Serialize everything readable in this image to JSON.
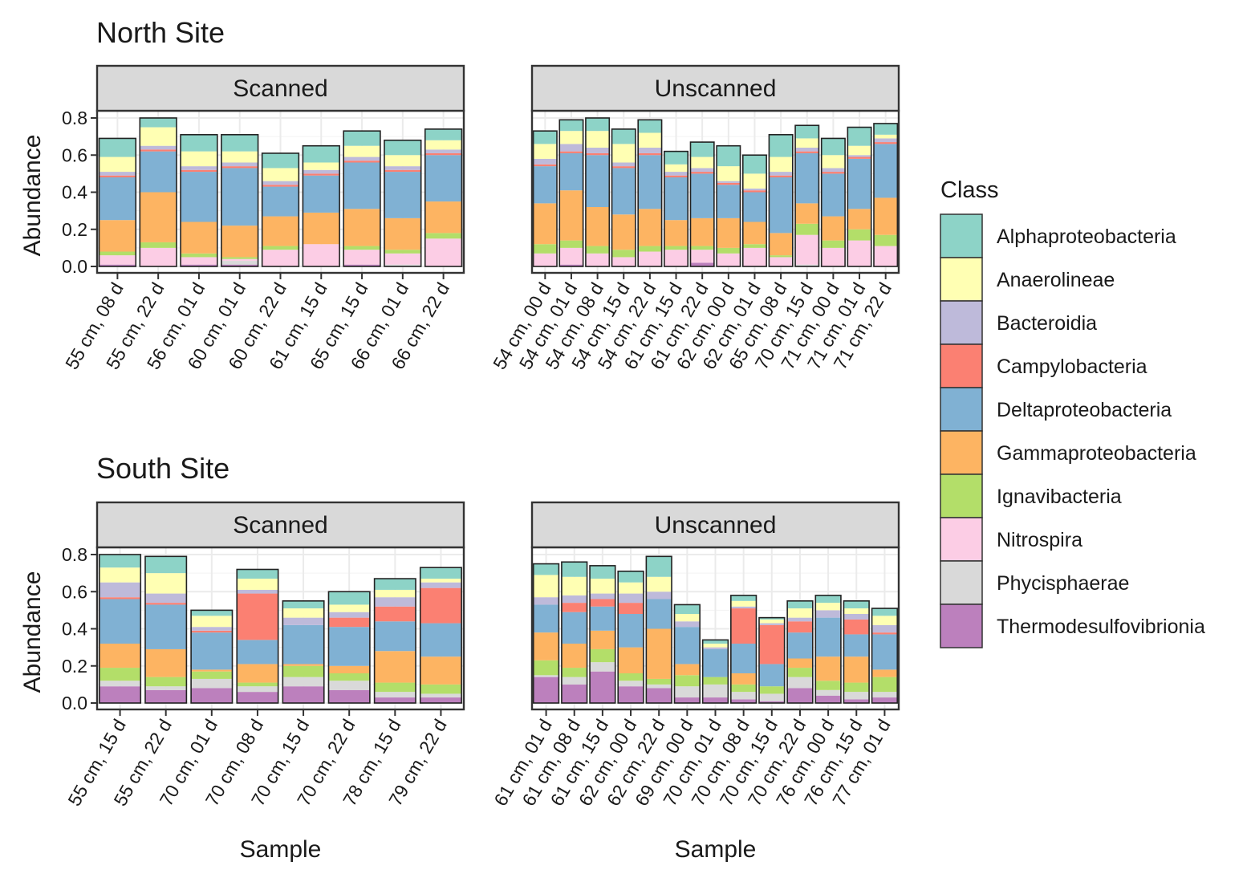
{
  "colors": {
    "Alphaproteobacteria": "#8dd3c7",
    "Anaerolineae": "#ffffb3",
    "Bacteroidia": "#bebada",
    "Campylobacteria": "#fb8072",
    "Deltaproteobacteria": "#80b1d3",
    "Gammaproteobacteria": "#fdb462",
    "Ignavibacteria": "#b3de69",
    "Nitrospira": "#fccde5",
    "Phycisphaerae": "#d9d9d9",
    "Thermodesulfovibrionia": "#bc80bd"
  },
  "legend": {
    "title": "Class",
    "items": [
      "Alphaproteobacteria",
      "Anaerolineae",
      "Bacteroidia",
      "Campylobacteria",
      "Deltaproteobacteria",
      "Gammaproteobacteria",
      "Ignavibacteria",
      "Nitrospira",
      "Phycisphaerae",
      "Thermodesulfovibrionia"
    ]
  },
  "chart_data": [
    {
      "type": "bar",
      "stacked": true,
      "site": "North Site",
      "facet": "Scanned",
      "ylabel": "Abundance",
      "xlabel": "",
      "ylim": [
        0,
        0.8
      ],
      "yticks": [
        "0.0",
        "0.2",
        "0.4",
        "0.6",
        "0.8"
      ],
      "categories": [
        "55 cm, 08 d",
        "55 cm, 22 d",
        "56 cm, 01 d",
        "60 cm, 01 d",
        "60 cm, 22 d",
        "61 cm, 15 d",
        "65 cm, 15 d",
        "66 cm, 01 d",
        "66 cm, 22 d"
      ],
      "series": [
        {
          "name": "Thermodesulfovibrionia",
          "values": [
            0.01,
            0.0,
            0.01,
            0.01,
            0.0,
            0.0,
            0.01,
            0.0,
            0.0
          ]
        },
        {
          "name": "Phycisphaerae",
          "values": [
            0.0,
            0.0,
            0.0,
            0.02,
            0.0,
            0.0,
            0.0,
            0.01,
            0.0
          ]
        },
        {
          "name": "Nitrospira",
          "values": [
            0.05,
            0.1,
            0.04,
            0.01,
            0.09,
            0.12,
            0.08,
            0.06,
            0.15
          ]
        },
        {
          "name": "Ignavibacteria",
          "values": [
            0.02,
            0.03,
            0.02,
            0.01,
            0.02,
            0.0,
            0.02,
            0.02,
            0.03
          ]
        },
        {
          "name": "Gammaproteobacteria",
          "values": [
            0.17,
            0.27,
            0.17,
            0.17,
            0.16,
            0.17,
            0.2,
            0.17,
            0.17
          ]
        },
        {
          "name": "Deltaproteobacteria",
          "values": [
            0.23,
            0.22,
            0.27,
            0.31,
            0.16,
            0.2,
            0.25,
            0.25,
            0.25
          ]
        },
        {
          "name": "Campylobacteria",
          "values": [
            0.01,
            0.01,
            0.01,
            0.01,
            0.01,
            0.01,
            0.01,
            0.01,
            0.01
          ]
        },
        {
          "name": "Bacteroidia",
          "values": [
            0.02,
            0.02,
            0.02,
            0.02,
            0.02,
            0.02,
            0.02,
            0.02,
            0.02
          ]
        },
        {
          "name": "Anaerolineae",
          "values": [
            0.08,
            0.1,
            0.08,
            0.06,
            0.07,
            0.04,
            0.06,
            0.06,
            0.05
          ]
        },
        {
          "name": "Alphaproteobacteria",
          "values": [
            0.1,
            0.05,
            0.09,
            0.09,
            0.08,
            0.09,
            0.08,
            0.08,
            0.06
          ]
        }
      ]
    },
    {
      "type": "bar",
      "stacked": true,
      "site": "North Site",
      "facet": "Unscanned",
      "ylabel": "",
      "xlabel": "",
      "ylim": [
        0,
        0.8
      ],
      "categories": [
        "54 cm, 00 d",
        "54 cm, 01 d",
        "54 cm, 08 d",
        "54 cm, 15 d",
        "54 cm, 22 d",
        "61 cm, 15 d",
        "61 cm, 22 d",
        "62 cm, 00 d",
        "62 cm, 01 d",
        "65 cm, 08 d",
        "70 cm, 15 d",
        "71 cm, 00 d",
        "71 cm, 01 d",
        "71 cm, 22 d"
      ],
      "series": [
        {
          "name": "Thermodesulfovibrionia",
          "values": [
            0.0,
            0.01,
            0.0,
            0.0,
            0.0,
            0.0,
            0.02,
            0.0,
            0.0,
            0.0,
            0.0,
            0.0,
            0.0,
            0.0
          ]
        },
        {
          "name": "Phycisphaerae",
          "values": [
            0.0,
            0.0,
            0.0,
            0.0,
            0.0,
            0.0,
            0.0,
            0.0,
            0.0,
            0.0,
            0.01,
            0.0,
            0.0,
            0.0
          ]
        },
        {
          "name": "Nitrospira",
          "values": [
            0.07,
            0.09,
            0.07,
            0.05,
            0.08,
            0.09,
            0.07,
            0.07,
            0.1,
            0.05,
            0.16,
            0.1,
            0.14,
            0.11
          ]
        },
        {
          "name": "Ignavibacteria",
          "values": [
            0.05,
            0.04,
            0.04,
            0.04,
            0.03,
            0.02,
            0.02,
            0.03,
            0.02,
            0.01,
            0.06,
            0.04,
            0.06,
            0.06
          ]
        },
        {
          "name": "Gammaproteobacteria",
          "values": [
            0.22,
            0.27,
            0.21,
            0.19,
            0.2,
            0.14,
            0.15,
            0.16,
            0.12,
            0.12,
            0.11,
            0.13,
            0.11,
            0.2
          ]
        },
        {
          "name": "Deltaproteobacteria",
          "values": [
            0.2,
            0.2,
            0.28,
            0.25,
            0.29,
            0.23,
            0.24,
            0.18,
            0.16,
            0.3,
            0.27,
            0.23,
            0.27,
            0.29
          ]
        },
        {
          "name": "Campylobacteria",
          "values": [
            0.01,
            0.01,
            0.01,
            0.01,
            0.01,
            0.01,
            0.01,
            0.01,
            0.01,
            0.01,
            0.01,
            0.01,
            0.01,
            0.01
          ]
        },
        {
          "name": "Bacteroidia",
          "values": [
            0.03,
            0.04,
            0.03,
            0.02,
            0.03,
            0.02,
            0.02,
            0.01,
            0.01,
            0.02,
            0.02,
            0.02,
            0.01,
            0.02
          ]
        },
        {
          "name": "Anaerolineae",
          "values": [
            0.08,
            0.07,
            0.09,
            0.1,
            0.08,
            0.04,
            0.06,
            0.08,
            0.08,
            0.08,
            0.05,
            0.07,
            0.05,
            0.02
          ]
        },
        {
          "name": "Alphaproteobacteria",
          "values": [
            0.07,
            0.06,
            0.07,
            0.08,
            0.07,
            0.07,
            0.08,
            0.11,
            0.1,
            0.12,
            0.07,
            0.09,
            0.1,
            0.06
          ]
        }
      ]
    },
    {
      "type": "bar",
      "stacked": true,
      "site": "South Site",
      "facet": "Scanned",
      "ylabel": "Abundance",
      "xlabel": "Sample",
      "ylim": [
        0,
        0.8
      ],
      "categories": [
        "55 cm, 15 d",
        "55 cm, 22 d",
        "70 cm, 01 d",
        "70 cm, 08 d",
        "70 cm, 15 d",
        "70 cm, 22 d",
        "78 cm, 15 d",
        "79 cm, 22 d"
      ],
      "series": [
        {
          "name": "Thermodesulfovibrionia",
          "values": [
            0.09,
            0.07,
            0.08,
            0.06,
            0.09,
            0.07,
            0.03,
            0.03
          ]
        },
        {
          "name": "Phycisphaerae",
          "values": [
            0.03,
            0.02,
            0.05,
            0.03,
            0.05,
            0.05,
            0.03,
            0.02
          ]
        },
        {
          "name": "Nitrospira",
          "values": [
            0.0,
            0.0,
            0.0,
            0.0,
            0.0,
            0.0,
            0.0,
            0.0
          ]
        },
        {
          "name": "Ignavibacteria",
          "values": [
            0.07,
            0.05,
            0.04,
            0.02,
            0.06,
            0.04,
            0.05,
            0.05
          ]
        },
        {
          "name": "Gammaproteobacteria",
          "values": [
            0.13,
            0.15,
            0.01,
            0.1,
            0.01,
            0.04,
            0.17,
            0.15
          ]
        },
        {
          "name": "Deltaproteobacteria",
          "values": [
            0.24,
            0.24,
            0.2,
            0.13,
            0.21,
            0.21,
            0.16,
            0.18
          ]
        },
        {
          "name": "Campylobacteria",
          "values": [
            0.01,
            0.01,
            0.01,
            0.25,
            0.0,
            0.05,
            0.08,
            0.19
          ]
        },
        {
          "name": "Bacteroidia",
          "values": [
            0.08,
            0.05,
            0.02,
            0.02,
            0.04,
            0.03,
            0.05,
            0.03
          ]
        },
        {
          "name": "Anaerolineae",
          "values": [
            0.08,
            0.11,
            0.06,
            0.06,
            0.05,
            0.04,
            0.04,
            0.02
          ]
        },
        {
          "name": "Alphaproteobacteria",
          "values": [
            0.07,
            0.09,
            0.03,
            0.05,
            0.04,
            0.07,
            0.06,
            0.06
          ]
        }
      ]
    },
    {
      "type": "bar",
      "stacked": true,
      "site": "South Site",
      "facet": "Unscanned",
      "ylabel": "",
      "xlabel": "Sample",
      "ylim": [
        0,
        0.8
      ],
      "categories": [
        "61 cm, 01 d",
        "61 cm, 08 d",
        "61 cm, 15 d",
        "62 cm, 00 d",
        "62 cm, 22 d",
        "69 cm, 00 d",
        "70 cm, 01 d",
        "70 cm, 08 d",
        "70 cm, 15 d",
        "70 cm, 22 d",
        "76 cm, 00 d",
        "76 cm, 15 d",
        "77 cm, 01 d"
      ],
      "series": [
        {
          "name": "Thermodesulfovibrionia",
          "values": [
            0.14,
            0.1,
            0.17,
            0.09,
            0.08,
            0.03,
            0.03,
            0.02,
            0.01,
            0.08,
            0.04,
            0.02,
            0.03
          ]
        },
        {
          "name": "Phycisphaerae",
          "values": [
            0.01,
            0.04,
            0.05,
            0.03,
            0.02,
            0.06,
            0.07,
            0.04,
            0.04,
            0.06,
            0.03,
            0.04,
            0.03
          ]
        },
        {
          "name": "Nitrospira",
          "values": [
            0.0,
            0.0,
            0.0,
            0.0,
            0.0,
            0.0,
            0.0,
            0.0,
            0.0,
            0.0,
            0.0,
            0.0,
            0.0
          ]
        },
        {
          "name": "Ignavibacteria",
          "values": [
            0.08,
            0.05,
            0.07,
            0.04,
            0.03,
            0.06,
            0.04,
            0.04,
            0.04,
            0.05,
            0.05,
            0.05,
            0.08
          ]
        },
        {
          "name": "Gammaproteobacteria",
          "values": [
            0.15,
            0.13,
            0.1,
            0.14,
            0.27,
            0.06,
            0.0,
            0.06,
            0.0,
            0.05,
            0.13,
            0.14,
            0.04
          ]
        },
        {
          "name": "Deltaproteobacteria",
          "values": [
            0.15,
            0.17,
            0.13,
            0.18,
            0.16,
            0.2,
            0.15,
            0.16,
            0.12,
            0.14,
            0.21,
            0.12,
            0.19
          ]
        },
        {
          "name": "Campylobacteria",
          "values": [
            0.0,
            0.05,
            0.04,
            0.06,
            0.0,
            0.0,
            0.0,
            0.19,
            0.21,
            0.06,
            0.0,
            0.08,
            0.01
          ]
        },
        {
          "name": "Bacteroidia",
          "values": [
            0.04,
            0.04,
            0.03,
            0.05,
            0.04,
            0.03,
            0.01,
            0.01,
            0.01,
            0.02,
            0.04,
            0.03,
            0.04
          ]
        },
        {
          "name": "Anaerolineae",
          "values": [
            0.12,
            0.1,
            0.08,
            0.06,
            0.08,
            0.04,
            0.02,
            0.03,
            0.02,
            0.05,
            0.04,
            0.03,
            0.05
          ]
        },
        {
          "name": "Alphaproteobacteria",
          "values": [
            0.06,
            0.08,
            0.07,
            0.06,
            0.11,
            0.05,
            0.02,
            0.03,
            0.01,
            0.04,
            0.04,
            0.04,
            0.04
          ]
        }
      ]
    }
  ]
}
